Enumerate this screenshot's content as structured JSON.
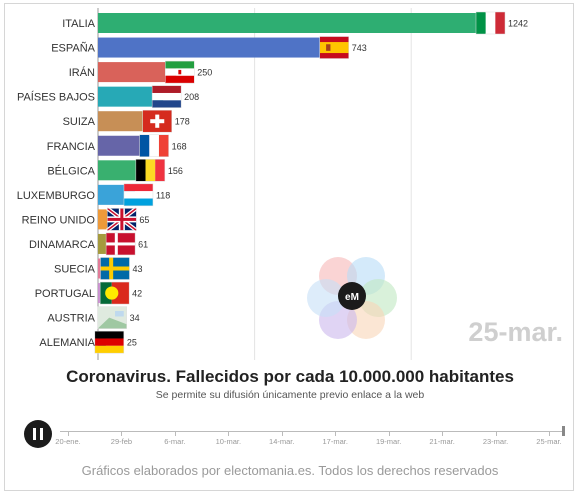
{
  "chart_data": {
    "type": "bar",
    "orientation": "horizontal",
    "title": "Coronavirus. Fallecidos por cada 10.000.000 habitantes",
    "subtitle": "Se permite su difusión únicamente previo enlace a la web",
    "current_date": "25-mar.",
    "categories": [
      "ITALIA",
      "ESPAÑA",
      "IRÁN",
      "PAÍSES BAJOS",
      "SUIZA",
      "FRANCIA",
      "BÉLGICA",
      "LUXEMBURGO",
      "REINO UNIDO",
      "DINAMARCA",
      "SUECIA",
      "PORTUGAL",
      "AUSTRIA",
      "ALEMANIA"
    ],
    "values": [
      1242,
      743,
      250,
      208,
      178,
      168,
      156,
      118,
      65,
      61,
      43,
      42,
      34,
      25
    ],
    "bar_colors": [
      "#2eae72",
      "#4f73c6",
      "#d9625a",
      "#27a9b6",
      "#c78f56",
      "#6665a8",
      "#39b06f",
      "#3aa3d9",
      "#ee9a3a",
      "#a59a3d",
      "#e27a97",
      "#c98fcf",
      "#d6806b",
      "#2fa3b2"
    ],
    "flags": [
      "italy-flag",
      "spain-flag",
      "iran-flag",
      "netherlands-flag",
      "switzerland-flag",
      "france-flag",
      "belgium-flag",
      "luxembourg-flag",
      "uk-flag",
      "denmark-flag",
      "sweden-flag",
      "portugal-flag",
      "austria-flag",
      "germany-flag"
    ],
    "xlim": [
      0,
      1300
    ],
    "grid": true,
    "legend": "none"
  },
  "timeline": {
    "labels": [
      "20-ene.",
      "29-feb",
      "6-mar.",
      "10-mar.",
      "14-mar.",
      "17-mar.",
      "19-mar.",
      "21-mar.",
      "23-mar.",
      "25-mar."
    ]
  },
  "logo_text": "eM",
  "footer": "Gráficos elaborados por electomania.es. Todos los derechos reservados"
}
